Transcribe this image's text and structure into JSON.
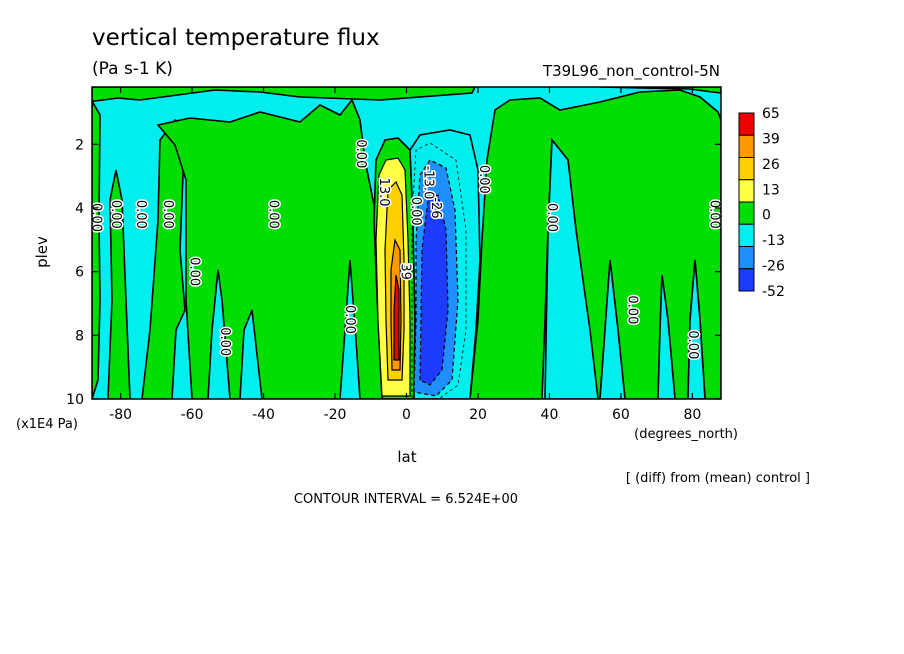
{
  "chart_data": {
    "type": "heatmap",
    "title": "vertical temperature flux",
    "subtitle_left": "(Pa s-1 K)",
    "subtitle_right": "T39L96_non_control-5N",
    "xlabel": "lat",
    "xunits": "(degrees_north)",
    "ylabel": "plev",
    "yunits": "(x1E4 Pa)",
    "xlim": [
      -88,
      88
    ],
    "ylim": [
      10,
      0.2
    ],
    "x_ticks": [
      -80,
      -60,
      -40,
      -20,
      0,
      20,
      40,
      60,
      80
    ],
    "y_ticks": [
      2,
      4,
      6,
      8,
      10
    ],
    "footer_right": "[ (diff) from (mean) control ]",
    "footer_center": "CONTOUR INTERVAL = 6.524E+00",
    "colorbar": {
      "levels": [
        65,
        39,
        26,
        13,
        0,
        -13,
        -26,
        -52
      ],
      "colors": [
        "#ee0000",
        "#ff9900",
        "#ffd000",
        "#ffff44",
        "#00dd00",
        "#00eeee",
        "#1f8fff",
        "#1e3cff"
      ]
    },
    "colors": {
      "positive_fill": "#00dd00",
      "negative_fill": "#00eeee"
    },
    "contour_labels": [
      {
        "text": "0.00",
        "lat": -86.5,
        "plev": 4.3
      },
      {
        "text": "0.00",
        "lat": -81,
        "plev": 4.2
      },
      {
        "text": "0.00",
        "lat": -74,
        "plev": 4.2
      },
      {
        "text": "0.00",
        "lat": -66.5,
        "plev": 4.2
      },
      {
        "text": "0.00",
        "lat": -59,
        "plev": 6.0
      },
      {
        "text": "0.00",
        "lat": -50.5,
        "plev": 8.2
      },
      {
        "text": "0.00",
        "lat": -37,
        "plev": 4.2
      },
      {
        "text": "0.00",
        "lat": -15.5,
        "plev": 7.5
      },
      {
        "text": "0.00",
        "lat": -12.5,
        "plev": 2.3
      },
      {
        "text": "13.0",
        "lat": -6,
        "plev": 3.5
      },
      {
        "text": "0.00",
        "lat": 3,
        "plev": 4.1
      },
      {
        "text": "39",
        "lat": 0,
        "plev": 6.0
      },
      {
        "text": "-13.0",
        "lat": 6.5,
        "plev": 3.2
      },
      {
        "text": "-26",
        "lat": 8.5,
        "plev": 4.0
      },
      {
        "text": "0.00",
        "lat": 22,
        "plev": 3.1
      },
      {
        "text": "0.00",
        "lat": 41,
        "plev": 4.3
      },
      {
        "text": "0.00",
        "lat": 63.5,
        "plev": 7.2
      },
      {
        "text": "0.00",
        "lat": 80.5,
        "plev": 8.3
      },
      {
        "text": "0.00",
        "lat": 86.5,
        "plev": 4.2
      }
    ]
  }
}
